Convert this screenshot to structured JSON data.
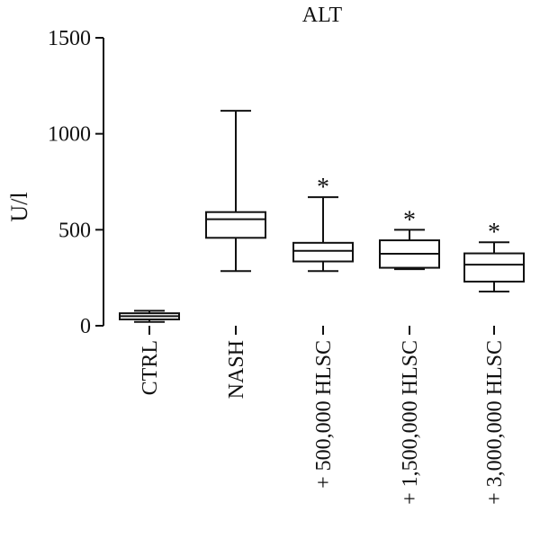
{
  "chart_data": {
    "type": "box",
    "title": "ALT",
    "ylabel": "U/l",
    "xlabel": "",
    "ylim": [
      0,
      1500
    ],
    "yticks": [
      0,
      500,
      1000,
      1500
    ],
    "grid": false,
    "categories": [
      "CTRL",
      "NASH",
      "+ 500,000 HLSC",
      "+ 1,500,000 HLSC",
      "+ 3,000,000 HLSC"
    ],
    "boxes": [
      {
        "category": "CTRL",
        "min": 20,
        "q1": 33,
        "median": 50,
        "q3": 65,
        "max": 78,
        "annotation": ""
      },
      {
        "category": "NASH",
        "min": 285,
        "q1": 458,
        "median": 555,
        "q3": 592,
        "max": 1120,
        "annotation": ""
      },
      {
        "category": "+ 500,000 HLSC",
        "min": 285,
        "q1": 335,
        "median": 390,
        "q3": 432,
        "max": 670,
        "annotation": "*"
      },
      {
        "category": "+ 1,500,000 HLSC",
        "min": 295,
        "q1": 302,
        "median": 375,
        "q3": 445,
        "max": 500,
        "annotation": "*"
      },
      {
        "category": "+ 3,000,000 HLSC",
        "min": 178,
        "q1": 230,
        "median": 318,
        "q3": 377,
        "max": 435,
        "annotation": "*"
      }
    ]
  }
}
